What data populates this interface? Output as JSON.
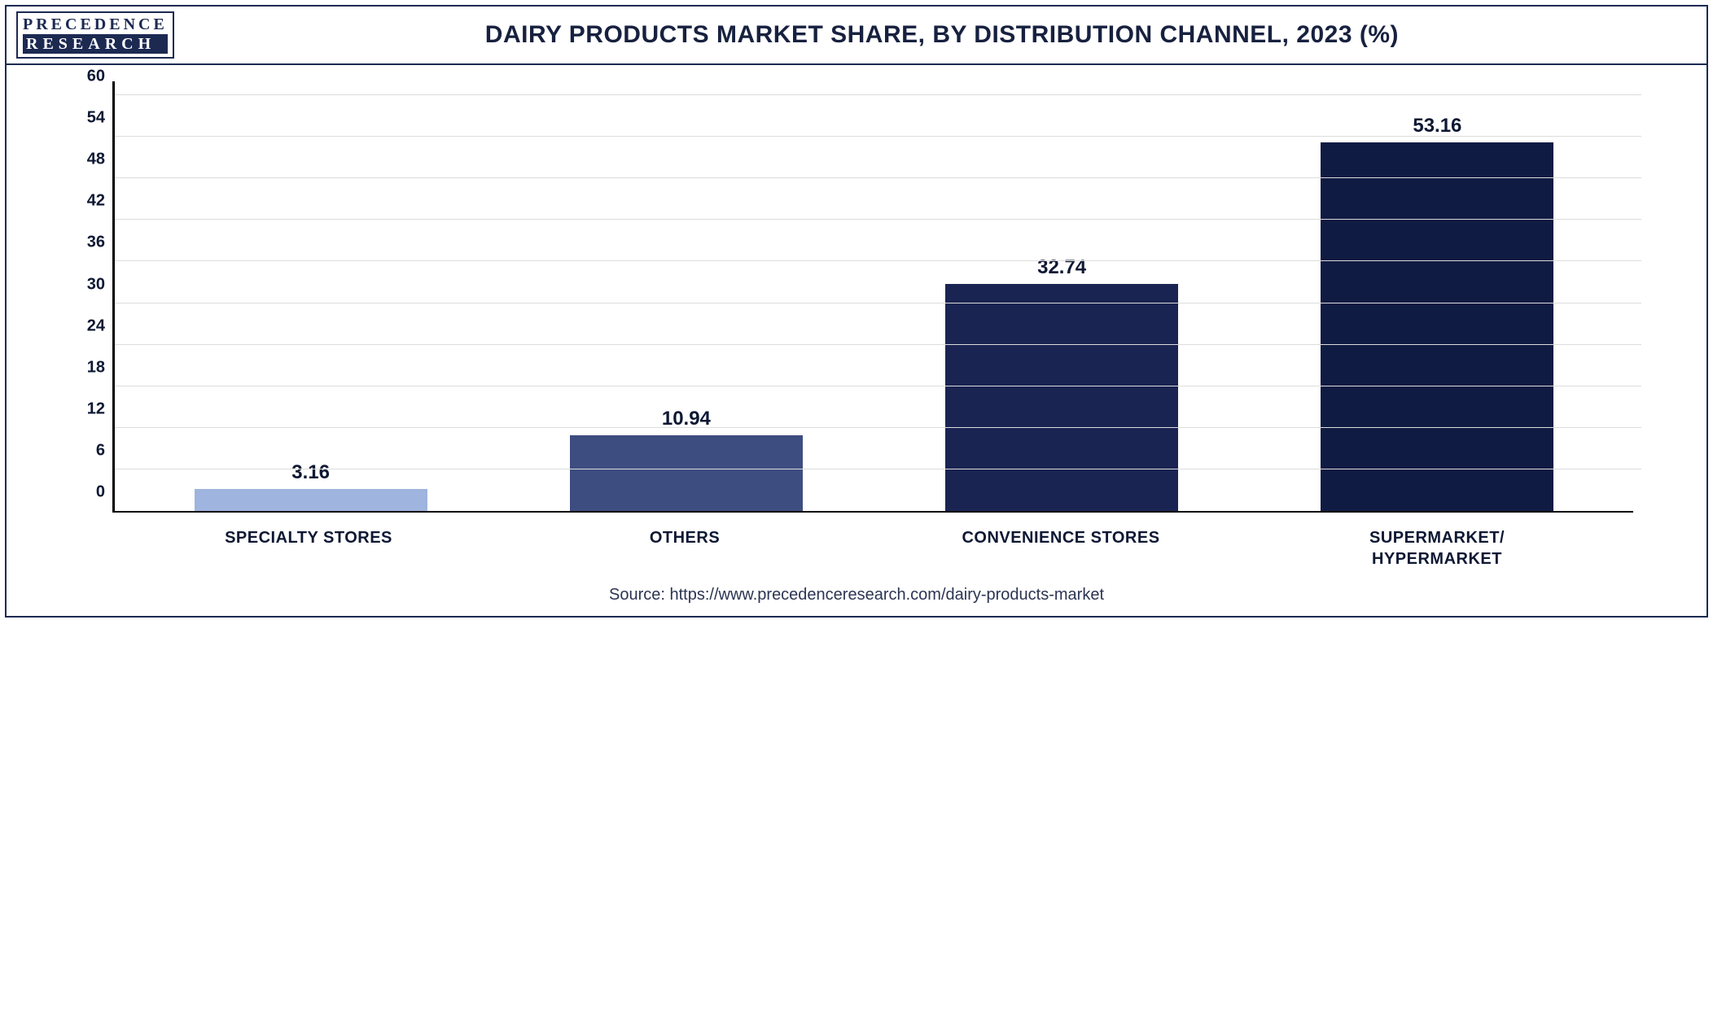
{
  "logo": {
    "top": "PRECEDENCE",
    "bottom": "RESEARCH"
  },
  "title": "DAIRY PRODUCTS MARKET SHARE, BY DISTRIBUTION CHANNEL, 2023 (%)",
  "source": "Source: https://www.precedenceresearch.com/dairy-products-market",
  "chart": {
    "type": "bar",
    "ylim": [
      0,
      62
    ],
    "ytick_step": 6,
    "yticks": [
      0,
      6,
      12,
      18,
      24,
      30,
      36,
      42,
      48,
      54,
      60
    ],
    "grid_color": "#dcdcdc",
    "axis_color": "#000000",
    "background_color": "#ffffff",
    "bar_width_pct": 62,
    "value_fontsize": 24,
    "tick_fontsize": 20,
    "label_fontsize": 20,
    "categories": [
      {
        "label": "SPECIALTY STORES",
        "value": 3.16,
        "color": "#9fb4de"
      },
      {
        "label": "OTHERS",
        "value": 10.94,
        "color": "#3e4d80"
      },
      {
        "label": "CONVENIENCE STORES",
        "value": 32.74,
        "color": "#1a2452"
      },
      {
        "label": "SUPERMARKET/\nHYPERMARKET",
        "value": 53.16,
        "color": "#101b43"
      }
    ]
  }
}
